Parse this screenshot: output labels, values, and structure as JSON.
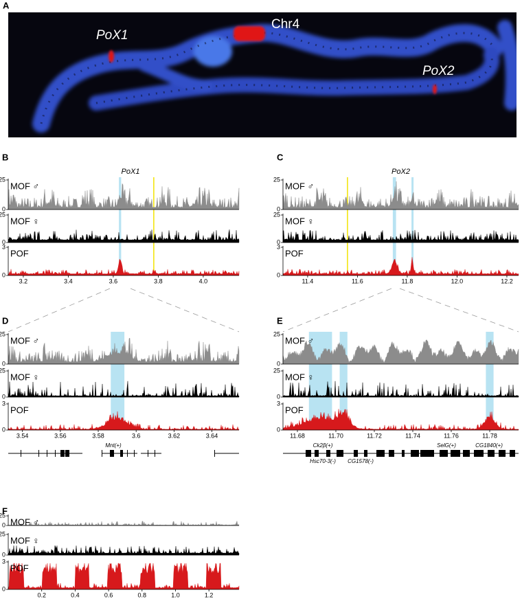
{
  "panels": [
    {
      "letter": "A",
      "labels": [
        "PoX1",
        "Chr4",
        "PoX2"
      ]
    },
    {
      "letter": "B",
      "title": "PoX1",
      "xlim": [
        3.133,
        4.159
      ],
      "xticks": [
        3.2,
        3.4,
        3.6,
        3.8,
        {
          "value": 4,
          "label": "4.0"
        }
      ],
      "highlights": [
        [
          3.625,
          3.635
        ]
      ],
      "marker": 3.78,
      "tracks": [
        {
          "name": "MOF ♂",
          "ylim": [
            0,
            25
          ],
          "yticks": [
            0,
            25
          ],
          "color": "#8c8c8c"
        },
        {
          "name": "MOF ♀",
          "ylim": [
            0,
            25
          ],
          "yticks": [
            0,
            25
          ],
          "color": "#000000"
        },
        {
          "name": "POF",
          "ylim": [
            0,
            3
          ],
          "yticks": [
            0,
            3
          ],
          "color": "#d7191c"
        }
      ]
    },
    {
      "letter": "C",
      "title": "PoX2",
      "xlim": [
        11.301,
        12.247
      ],
      "xticks": [
        11.4,
        11.6,
        11.8,
        {
          "value": 12,
          "label": "12.0"
        },
        12.2
      ],
      "highlights": [
        [
          11.742,
          11.755
        ],
        [
          11.817,
          11.823
        ]
      ],
      "marker": 11.56,
      "tracks": [
        {
          "name": "MOF ♂",
          "ylim": [
            0,
            25
          ],
          "yticks": [
            0,
            25
          ],
          "color": "#8c8c8c"
        },
        {
          "name": "MOF ♀",
          "ylim": [
            0,
            25
          ],
          "yticks": [
            0,
            25
          ],
          "color": "#000000"
        },
        {
          "name": "POF",
          "ylim": [
            0,
            3
          ],
          "yticks": [
            0,
            3
          ],
          "color": "#d7191c"
        }
      ]
    },
    {
      "letter": "D",
      "xlim": [
        3.5325,
        3.6543
      ],
      "xticks": [
        3.54,
        3.56,
        3.58,
        3.6,
        3.62,
        3.64
      ],
      "highlights": [
        [
          3.5866,
          3.5938
        ]
      ],
      "genes": [
        "Mnt(+)"
      ],
      "tracks": [
        {
          "name": "MOF ♂",
          "ylim": [
            0,
            25
          ],
          "yticks": [
            0,
            25
          ],
          "color": "#8c8c8c"
        },
        {
          "name": "MOF ♀",
          "ylim": [
            0,
            25
          ],
          "yticks": [
            0,
            25
          ],
          "color": "#000000"
        },
        {
          "name": "POF",
          "ylim": [
            0,
            3
          ],
          "yticks": [
            0,
            3
          ],
          "color": "#d7191c"
        }
      ]
    },
    {
      "letter": "E",
      "xlim": [
        11.6725,
        11.795
      ],
      "xticks": [
        11.68,
        {
          "value": 11.7,
          "label": "11.70"
        },
        11.72,
        11.74,
        11.76,
        11.78
      ],
      "highlights": [
        [
          11.686,
          11.698
        ],
        [
          11.702,
          11.706
        ],
        [
          11.778,
          11.782
        ]
      ],
      "genes": [
        "Ck2β(+)",
        "Hsc70-3(-)",
        "CG1578(-)",
        "SelG(+)",
        "CG1840(+)"
      ],
      "tracks": [
        {
          "name": "MOF ♂",
          "ylim": [
            0,
            25
          ],
          "yticks": [
            0,
            25
          ],
          "color": "#8c8c8c"
        },
        {
          "name": "MOF ♀",
          "ylim": [
            0,
            25
          ],
          "yticks": [
            0,
            25
          ],
          "color": "#000000"
        },
        {
          "name": "POF",
          "ylim": [
            0,
            3
          ],
          "yticks": [
            0,
            3
          ],
          "color": "#d7191c"
        }
      ]
    },
    {
      "letter": "F",
      "xlim": [
        0,
        1.38
      ],
      "xticks": [
        0.2,
        0.4,
        0.6,
        0.8,
        {
          "value": 1,
          "label": "1.0"
        },
        1.2
      ],
      "tracks": [
        {
          "name": "MOF ♂",
          "ylim": [
            0,
            25
          ],
          "yticks": [
            0,
            25
          ],
          "color": "#8c8c8c"
        },
        {
          "name": "MOF ♀",
          "ylim": [
            0,
            25
          ],
          "yticks": [
            0,
            25
          ],
          "color": "#000000"
        },
        {
          "name": "POF",
          "ylim": [
            0,
            3
          ],
          "yticks": [
            0,
            3
          ],
          "color": "#d7191c"
        }
      ]
    }
  ]
}
